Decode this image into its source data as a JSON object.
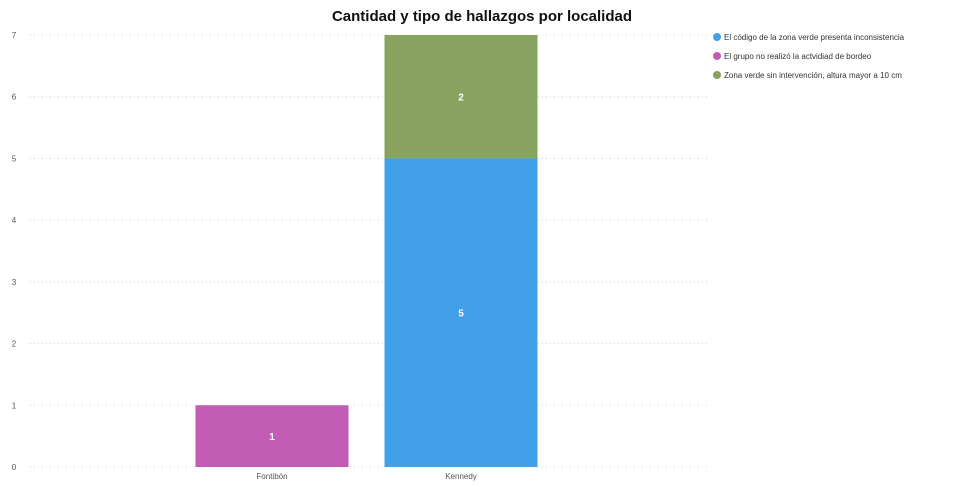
{
  "chart_data": {
    "type": "bar",
    "stacked": true,
    "title": "Cantidad y tipo de hallazgos por localidad",
    "xlabel": "",
    "ylabel": "",
    "categories": [
      "Fontibón",
      "Kennedy"
    ],
    "ylim": [
      0,
      7
    ],
    "yticks": [
      "0",
      "1",
      "2",
      "3",
      "4",
      "5",
      "6",
      "7"
    ],
    "grid": true,
    "legend_position": "top-right",
    "series": [
      {
        "name": "El código de la zona verde presenta inconsistencia",
        "color": "#42a0e8",
        "values": [
          0,
          5
        ]
      },
      {
        "name": "El grupo no realizó la actvidiad de bordeo",
        "color": "#c25cb5",
        "values": [
          1,
          0
        ]
      },
      {
        "name": "Zona verde sin intervención, altura mayor a 10 cm",
        "color": "#87a35f",
        "values": [
          0,
          2
        ]
      }
    ]
  }
}
